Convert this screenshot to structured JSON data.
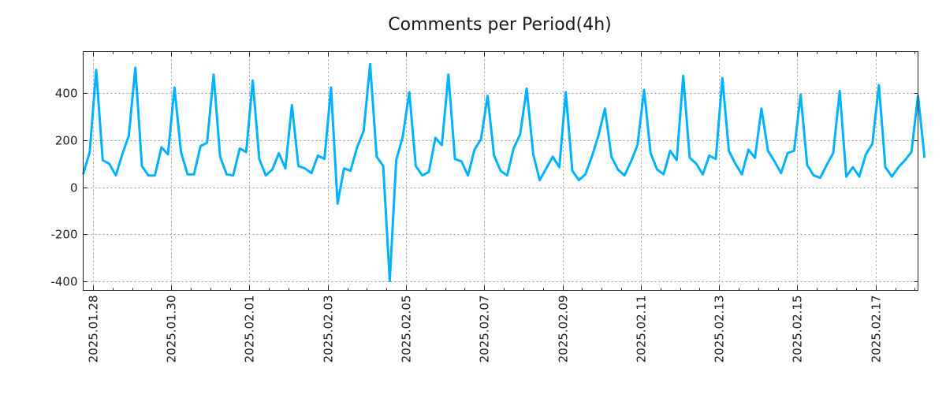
{
  "chart_data": {
    "type": "line",
    "title": "Comments per Period(4h)",
    "xlabel": "",
    "ylabel": "",
    "x_start": "2025-01-27 18:00",
    "x_step_hours": 4,
    "xlim_hours": [
      0,
      512
    ],
    "ylim": [
      -440,
      578
    ],
    "yticks": [
      -400,
      -200,
      0,
      200,
      400
    ],
    "ytick_labels": [
      "-400",
      "-200",
      "0",
      "200",
      "400"
    ],
    "xticks_hours": [
      6,
      54,
      102,
      150,
      198,
      246,
      294,
      342,
      390,
      438,
      486
    ],
    "xtick_labels": [
      "2025.01.28",
      "2025.01.30",
      "2025.02.01",
      "2025.02.03",
      "2025.02.05",
      "2025.02.07",
      "2025.02.09",
      "2025.02.11",
      "2025.02.13",
      "2025.02.15",
      "2025.02.17"
    ],
    "minor_tick_step_hours": 12,
    "grid": true,
    "legend": "none",
    "series": [
      {
        "name": "Comments",
        "color": "#00b2ff",
        "values": [
          55,
          150,
          500,
          115,
          100,
          50,
          140,
          220,
          510,
          90,
          50,
          50,
          170,
          140,
          425,
          150,
          55,
          55,
          175,
          190,
          480,
          130,
          55,
          50,
          165,
          150,
          455,
          120,
          50,
          75,
          145,
          80,
          350,
          90,
          80,
          60,
          135,
          120,
          425,
          -70,
          80,
          70,
          170,
          240,
          525,
          130,
          90,
          -400,
          115,
          215,
          405,
          90,
          50,
          65,
          210,
          180,
          480,
          120,
          110,
          50,
          160,
          205,
          390,
          135,
          70,
          50,
          165,
          225,
          420,
          140,
          30,
          80,
          130,
          85,
          405,
          70,
          30,
          55,
          130,
          220,
          335,
          130,
          75,
          50,
          110,
          180,
          415,
          145,
          75,
          55,
          155,
          115,
          475,
          125,
          100,
          55,
          135,
          120,
          465,
          155,
          100,
          55,
          160,
          125,
          335,
          155,
          110,
          60,
          145,
          155,
          395,
          95,
          50,
          40,
          95,
          145,
          410,
          45,
          85,
          45,
          140,
          185,
          435,
          85,
          45,
          85,
          115,
          150,
          390,
          125
        ]
      }
    ]
  }
}
